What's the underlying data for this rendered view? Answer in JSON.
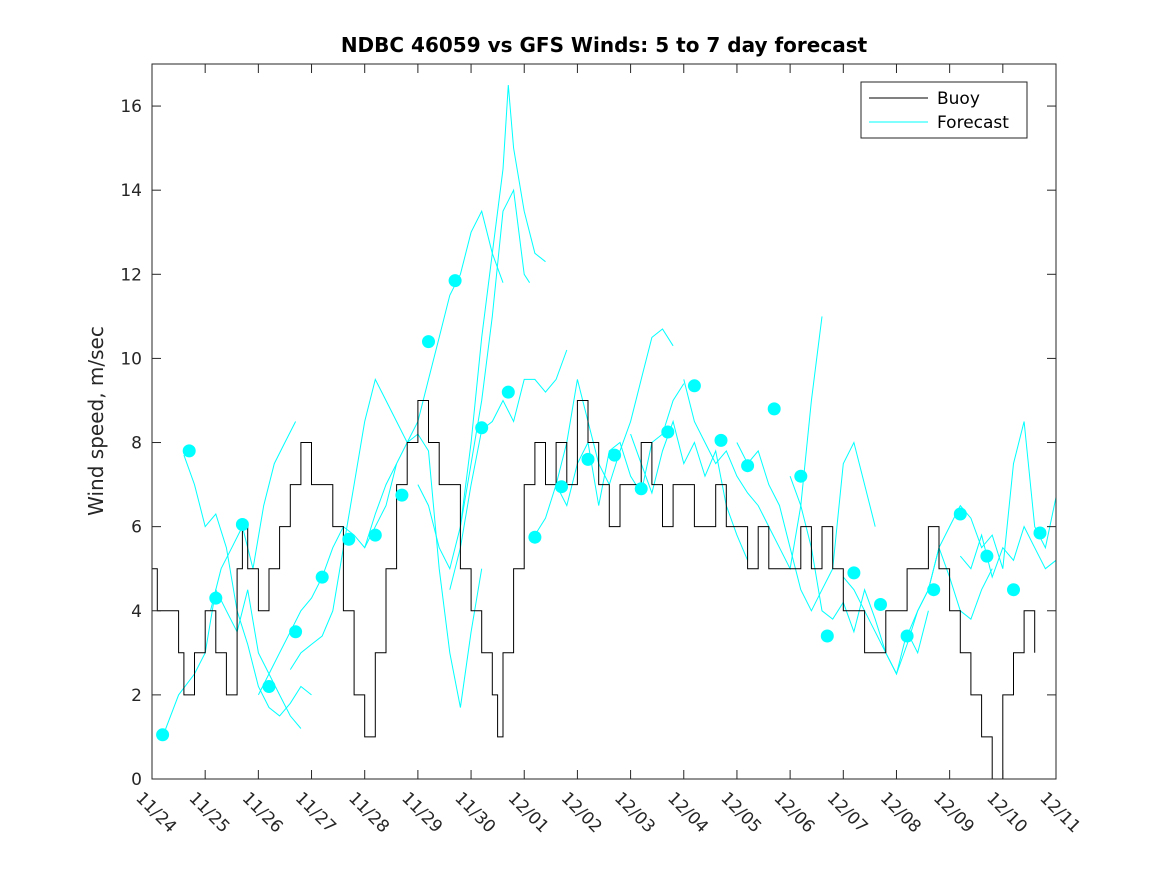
{
  "chart_data": {
    "type": "line",
    "title": "NDBC 46059 vs GFS Winds: 5 to 7 day forecast",
    "xlabel": "",
    "ylabel": "Wind speed, m/sec",
    "x_tick_labels": [
      "11/24",
      "11/25",
      "11/26",
      "11/27",
      "11/28",
      "11/29",
      "11/30",
      "12/01",
      "12/02",
      "12/03",
      "12/04",
      "12/05",
      "12/06",
      "12/07",
      "12/08",
      "12/09",
      "12/10",
      "12/11"
    ],
    "xlim": [
      0,
      17
    ],
    "ylim": [
      0,
      17
    ],
    "y_ticks": [
      0,
      2,
      4,
      6,
      8,
      10,
      12,
      14,
      16
    ],
    "legend": {
      "location": "top-right",
      "entries": [
        "Buoy",
        "Forecast"
      ]
    },
    "colors": {
      "buoy": "#000000",
      "forecast": "#00ffff",
      "axis": "#262626"
    },
    "series": [
      {
        "name": "Buoy",
        "x": [
          0,
          0.1,
          0.2,
          0.4,
          0.5,
          0.6,
          0.8,
          1.0,
          1.2,
          1.4,
          1.6,
          1.7,
          1.8,
          2.0,
          2.2,
          2.4,
          2.6,
          2.8,
          3.0,
          3.2,
          3.4,
          3.6,
          3.8,
          4.0,
          4.2,
          4.4,
          4.6,
          4.8,
          5.0,
          5.2,
          5.4,
          5.6,
          5.8,
          6.0,
          6.2,
          6.4,
          6.5,
          6.6,
          6.8,
          7.0,
          7.2,
          7.4,
          7.6,
          7.8,
          8.0,
          8.2,
          8.4,
          8.6,
          8.8,
          9.0,
          9.2,
          9.4,
          9.6,
          9.8,
          10.0,
          10.2,
          10.4,
          10.6,
          10.8,
          11.0,
          11.2,
          11.4,
          11.6,
          11.8,
          12.0,
          12.2,
          12.4,
          12.6,
          12.8,
          13.0,
          13.2,
          13.4,
          13.6,
          13.8,
          14.0,
          14.2,
          14.4,
          14.6,
          14.8,
          15.0,
          15.2,
          15.4,
          15.6,
          15.8,
          16.0,
          16.2,
          16.4,
          16.6
        ],
        "y": [
          5,
          4,
          4,
          4,
          3,
          2,
          3,
          4,
          3,
          2,
          5,
          6,
          5,
          4,
          5,
          6,
          7,
          8,
          7,
          7,
          6,
          4,
          2,
          1,
          3,
          5,
          7,
          8,
          9,
          8,
          7,
          7,
          5,
          4,
          3,
          2,
          1,
          3,
          5,
          7,
          8,
          7,
          8,
          7,
          9,
          8,
          7,
          6,
          7,
          7,
          8,
          7,
          6,
          7,
          7,
          6,
          6,
          7,
          6,
          6,
          5,
          6,
          5,
          5,
          5,
          6,
          5,
          6,
          5,
          4,
          4,
          3,
          3,
          4,
          4,
          5,
          5,
          6,
          5,
          4,
          3,
          2,
          1,
          0,
          2,
          3,
          4,
          3
        ]
      },
      {
        "name": "Forecast",
        "x": [
          0.2,
          0.7,
          1.2,
          1.7,
          2.2,
          2.7,
          3.2,
          3.7,
          4.2,
          4.7,
          5.2,
          5.7,
          6.2,
          6.7,
          7.2,
          7.7,
          8.2,
          8.7,
          9.2,
          9.7,
          10.2,
          10.7,
          11.2,
          11.7,
          12.2,
          12.7,
          13.2,
          13.7,
          14.2,
          14.7,
          15.2,
          15.7,
          16.2,
          16.7
        ],
        "y": [
          1.05,
          7.8,
          4.3,
          6.05,
          2.2,
          3.5,
          4.8,
          5.7,
          5.8,
          6.75,
          10.4,
          11.85,
          8.35,
          9.2,
          5.75,
          6.95,
          7.6,
          7.7,
          6.9,
          8.25,
          9.35,
          8.05,
          7.45,
          8.8,
          7.2,
          3.4,
          4.9,
          4.15,
          3.4,
          4.5,
          6.3,
          5.3,
          4.5,
          5.85
        ]
      }
    ],
    "forecast_traces": [
      [
        [
          0.2,
          1.0
        ],
        [
          0.5,
          2.0
        ],
        [
          0.8,
          2.5
        ],
        [
          1.0,
          3.0
        ],
        [
          1.2,
          4.5
        ],
        [
          1.4,
          4.0
        ],
        [
          1.6,
          3.5
        ],
        [
          1.8,
          4.5
        ],
        [
          2.0,
          3.0
        ],
        [
          2.2,
          2.5
        ],
        [
          2.4,
          2.0
        ],
        [
          2.6,
          1.5
        ],
        [
          2.8,
          1.2
        ]
      ],
      [
        [
          0.6,
          7.7
        ],
        [
          0.8,
          7.0
        ],
        [
          1.0,
          6.0
        ],
        [
          1.2,
          6.3
        ],
        [
          1.4,
          5.5
        ],
        [
          1.6,
          4.0
        ],
        [
          1.8,
          3.2
        ],
        [
          2.0,
          2.2
        ],
        [
          2.2,
          1.7
        ],
        [
          2.4,
          1.5
        ],
        [
          2.6,
          1.8
        ],
        [
          2.8,
          2.2
        ],
        [
          3.0,
          2.0
        ]
      ],
      [
        [
          1.1,
          4.0
        ],
        [
          1.3,
          5.0
        ],
        [
          1.5,
          5.5
        ],
        [
          1.7,
          6.0
        ],
        [
          1.9,
          5.0
        ],
        [
          2.1,
          6.5
        ],
        [
          2.3,
          7.5
        ],
        [
          2.5,
          8.0
        ],
        [
          2.7,
          8.5
        ]
      ],
      [
        [
          2.0,
          2.0
        ],
        [
          2.2,
          2.5
        ],
        [
          2.4,
          3.0
        ],
        [
          2.6,
          3.5
        ],
        [
          2.8,
          4.0
        ],
        [
          3.0,
          4.3
        ],
        [
          3.2,
          4.8
        ],
        [
          3.4,
          5.5
        ],
        [
          3.6,
          6.0
        ],
        [
          3.8,
          5.8
        ],
        [
          4.0,
          5.5
        ],
        [
          4.2,
          6.3
        ],
        [
          4.4,
          7.0
        ],
        [
          4.6,
          7.5
        ]
      ],
      [
        [
          2.6,
          2.6
        ],
        [
          2.8,
          3.0
        ],
        [
          3.0,
          3.2
        ],
        [
          3.2,
          3.4
        ],
        [
          3.4,
          4.0
        ],
        [
          3.6,
          5.5
        ],
        [
          3.8,
          7.0
        ],
        [
          4.0,
          8.5
        ],
        [
          4.2,
          9.5
        ],
        [
          4.4,
          9.0
        ],
        [
          4.6,
          8.5
        ],
        [
          4.8,
          8.0
        ],
        [
          5.0,
          8.2
        ],
        [
          5.2,
          7.8
        ],
        [
          5.4,
          5.0
        ],
        [
          5.6,
          3.0
        ],
        [
          5.8,
          1.7
        ],
        [
          6.0,
          3.5
        ],
        [
          6.2,
          5.0
        ]
      ],
      [
        [
          4.0,
          5.5
        ],
        [
          4.2,
          6.0
        ],
        [
          4.4,
          6.5
        ],
        [
          4.6,
          7.5
        ],
        [
          4.8,
          8.0
        ],
        [
          5.0,
          8.5
        ],
        [
          5.2,
          9.5
        ],
        [
          5.4,
          10.5
        ],
        [
          5.6,
          11.5
        ],
        [
          5.8,
          12.0
        ],
        [
          6.0,
          13.0
        ],
        [
          6.2,
          13.5
        ],
        [
          6.4,
          12.5
        ],
        [
          6.6,
          11.8
        ]
      ],
      [
        [
          5.0,
          7.0
        ],
        [
          5.2,
          6.5
        ],
        [
          5.4,
          5.5
        ],
        [
          5.6,
          5.0
        ],
        [
          5.8,
          6.0
        ],
        [
          6.0,
          8.0
        ],
        [
          6.2,
          10.5
        ],
        [
          6.4,
          12.5
        ],
        [
          6.6,
          14.5
        ],
        [
          6.7,
          16.5
        ],
        [
          6.8,
          15.0
        ],
        [
          7.0,
          13.5
        ],
        [
          7.2,
          12.5
        ],
        [
          7.4,
          12.3
        ]
      ],
      [
        [
          5.8,
          6.0
        ],
        [
          6.0,
          7.5
        ],
        [
          6.2,
          9.0
        ],
        [
          6.4,
          11.0
        ],
        [
          6.6,
          13.5
        ],
        [
          6.8,
          14.0
        ],
        [
          7.0,
          12.0
        ],
        [
          7.1,
          11.8
        ]
      ],
      [
        [
          5.6,
          4.5
        ],
        [
          5.8,
          5.5
        ],
        [
          6.0,
          7.0
        ],
        [
          6.2,
          8.3
        ],
        [
          6.4,
          8.5
        ],
        [
          6.6,
          9.0
        ],
        [
          6.8,
          8.5
        ],
        [
          7.0,
          9.5
        ],
        [
          7.2,
          9.5
        ],
        [
          7.4,
          9.2
        ],
        [
          7.6,
          9.5
        ],
        [
          7.8,
          10.2
        ]
      ],
      [
        [
          7.2,
          5.8
        ],
        [
          7.4,
          6.2
        ],
        [
          7.6,
          7.0
        ],
        [
          7.8,
          8.0
        ],
        [
          8.0,
          9.5
        ],
        [
          8.2,
          8.5
        ],
        [
          8.4,
          7.5
        ],
        [
          8.6,
          7.0
        ],
        [
          8.8,
          7.8
        ],
        [
          9.0,
          8.5
        ],
        [
          9.2,
          9.5
        ],
        [
          9.4,
          10.5
        ],
        [
          9.6,
          10.7
        ],
        [
          9.8,
          10.3
        ]
      ],
      [
        [
          7.6,
          7.0
        ],
        [
          7.8,
          6.5
        ],
        [
          8.0,
          7.5
        ],
        [
          8.2,
          8.0
        ],
        [
          8.4,
          6.5
        ],
        [
          8.6,
          7.8
        ],
        [
          8.8,
          8.0
        ],
        [
          9.0,
          7.2
        ],
        [
          9.2,
          6.8
        ],
        [
          9.4,
          8.0
        ],
        [
          9.6,
          8.2
        ],
        [
          9.8,
          9.0
        ],
        [
          10.0,
          9.4
        ]
      ],
      [
        [
          9.0,
          8.2
        ],
        [
          9.2,
          7.5
        ],
        [
          9.4,
          6.8
        ],
        [
          9.6,
          7.8
        ],
        [
          9.8,
          8.5
        ],
        [
          10.0,
          7.5
        ],
        [
          10.2,
          8.0
        ],
        [
          10.4,
          7.2
        ],
        [
          10.6,
          7.8
        ],
        [
          10.8,
          6.5
        ],
        [
          11.0,
          5.8
        ],
        [
          11.2,
          5.2
        ]
      ],
      [
        [
          10.0,
          9.5
        ],
        [
          10.2,
          8.5
        ],
        [
          10.4,
          8.0
        ],
        [
          10.6,
          7.5
        ],
        [
          10.8,
          7.8
        ],
        [
          11.0,
          7.2
        ],
        [
          11.2,
          6.8
        ],
        [
          11.4,
          6.5
        ],
        [
          11.6,
          6.0
        ],
        [
          11.8,
          5.5
        ],
        [
          12.0,
          5.0
        ],
        [
          12.2,
          6.5
        ],
        [
          12.4,
          9.0
        ],
        [
          12.6,
          11.0
        ]
      ],
      [
        [
          11.0,
          8.0
        ],
        [
          11.2,
          7.5
        ],
        [
          11.4,
          7.8
        ],
        [
          11.6,
          7.0
        ],
        [
          11.8,
          6.5
        ],
        [
          12.0,
          5.5
        ],
        [
          12.2,
          4.5
        ],
        [
          12.4,
          4.0
        ],
        [
          12.6,
          4.5
        ],
        [
          12.8,
          5.0
        ],
        [
          13.0,
          7.5
        ],
        [
          13.2,
          8.0
        ],
        [
          13.4,
          7.0
        ],
        [
          13.6,
          6.0
        ]
      ],
      [
        [
          12.0,
          7.2
        ],
        [
          12.2,
          6.5
        ],
        [
          12.4,
          5.5
        ],
        [
          12.6,
          4.0
        ],
        [
          12.8,
          3.8
        ],
        [
          13.0,
          4.2
        ],
        [
          13.2,
          3.5
        ],
        [
          13.4,
          4.5
        ],
        [
          13.6,
          3.8
        ],
        [
          13.8,
          3.0
        ],
        [
          14.0,
          2.5
        ],
        [
          14.2,
          3.5
        ],
        [
          14.4,
          3.0
        ],
        [
          14.6,
          4.0
        ]
      ],
      [
        [
          13.0,
          4.8
        ],
        [
          13.2,
          4.5
        ],
        [
          13.4,
          4.0
        ],
        [
          13.6,
          3.5
        ],
        [
          13.8,
          3.0
        ],
        [
          14.0,
          2.5
        ],
        [
          14.2,
          3.2
        ],
        [
          14.4,
          4.0
        ],
        [
          14.6,
          4.5
        ],
        [
          14.8,
          5.5
        ],
        [
          15.0,
          4.8
        ],
        [
          15.2,
          4.0
        ],
        [
          15.4,
          3.8
        ],
        [
          15.6,
          4.5
        ],
        [
          15.8,
          5.0
        ]
      ],
      [
        [
          14.2,
          3.4
        ],
        [
          14.4,
          4.0
        ],
        [
          14.6,
          4.5
        ],
        [
          14.8,
          5.5
        ],
        [
          15.0,
          6.0
        ],
        [
          15.2,
          6.5
        ],
        [
          15.4,
          6.2
        ],
        [
          15.6,
          5.5
        ],
        [
          15.8,
          5.8
        ],
        [
          16.0,
          5.0
        ],
        [
          16.2,
          7.5
        ],
        [
          16.4,
          8.5
        ],
        [
          16.6,
          6.0
        ],
        [
          16.8,
          5.5
        ],
        [
          17.0,
          6.7
        ]
      ],
      [
        [
          15.2,
          5.3
        ],
        [
          15.4,
          5.0
        ],
        [
          15.6,
          5.8
        ],
        [
          15.8,
          4.8
        ],
        [
          16.0,
          5.5
        ],
        [
          16.2,
          5.2
        ],
        [
          16.4,
          6.0
        ],
        [
          16.6,
          5.5
        ],
        [
          16.8,
          5.0
        ],
        [
          17.0,
          5.2
        ]
      ]
    ]
  }
}
